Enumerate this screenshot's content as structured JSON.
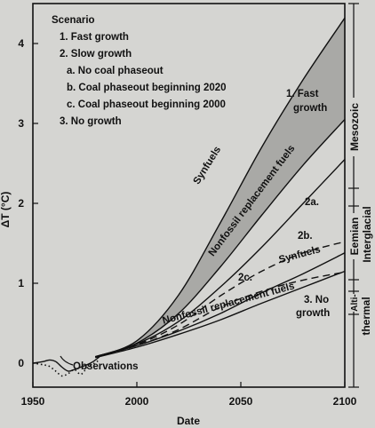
{
  "chart_data": {
    "type": "line",
    "title": "",
    "xlabel": "Date",
    "ylabel": "ΔT (°C)",
    "xlim": [
      1950,
      2100
    ],
    "ylim": [
      -0.3,
      4.5
    ],
    "grid": false,
    "x_ticks": [
      1950,
      2000,
      2050,
      2100
    ],
    "y_ticks": [
      0,
      1,
      2,
      3,
      4
    ],
    "legend": {
      "title": "Scenario",
      "items": [
        "1. Fast growth",
        "2. Slow growth",
        "a. No coal phaseout",
        "b. Coal phaseout beginning 2020",
        "c. Coal phaseout beginning 2000",
        "3. No growth"
      ]
    },
    "series": [
      {
        "id": "s1_synfuels",
        "style": "solid",
        "x": [
          1980,
          2000,
          2020,
          2040,
          2060,
          2080,
          2100
        ],
        "y": [
          0.08,
          0.28,
          0.85,
          1.75,
          2.7,
          3.55,
          4.32
        ]
      },
      {
        "id": "s1_nonfossil",
        "style": "solid",
        "x": [
          1980,
          2000,
          2020,
          2040,
          2060,
          2080,
          2100
        ],
        "y": [
          0.08,
          0.25,
          0.62,
          1.2,
          1.85,
          2.48,
          3.05
        ]
      },
      {
        "id": "s2a",
        "style": "solid",
        "x": [
          1980,
          2000,
          2020,
          2040,
          2060,
          2080,
          2100
        ],
        "y": [
          0.08,
          0.24,
          0.52,
          0.95,
          1.45,
          2.0,
          2.55
        ]
      },
      {
        "id": "s2b",
        "style": "dashed",
        "x": [
          1980,
          2000,
          2020,
          2040,
          2060,
          2080,
          2100
        ],
        "y": [
          0.08,
          0.23,
          0.48,
          0.84,
          1.15,
          1.38,
          1.52
        ]
      },
      {
        "id": "s2c",
        "style": "dashed",
        "x": [
          1980,
          2000,
          2020,
          2040,
          2060,
          2080,
          2100
        ],
        "y": [
          0.08,
          0.22,
          0.42,
          0.7,
          0.9,
          1.04,
          1.14
        ]
      },
      {
        "id": "s3_synfuels",
        "style": "solid",
        "x": [
          1980,
          2000,
          2020,
          2040,
          2060,
          2080,
          2100
        ],
        "y": [
          0.08,
          0.22,
          0.4,
          0.62,
          0.88,
          1.12,
          1.38
        ]
      },
      {
        "id": "s3_nonfossil",
        "style": "solid",
        "x": [
          1980,
          2000,
          2020,
          2040,
          2060,
          2080,
          2100
        ],
        "y": [
          0.07,
          0.2,
          0.36,
          0.54,
          0.75,
          0.95,
          1.15
        ]
      }
    ],
    "observations": {
      "solid": {
        "x": [
          1950,
          1955,
          1958,
          1961,
          1964,
          1967,
          1970,
          1973,
          1976,
          1979,
          1982
        ],
        "y": [
          0.0,
          0.02,
          0.04,
          0.02,
          -0.05,
          -0.1,
          -0.08,
          -0.05,
          -0.02,
          0.02,
          0.08
        ]
      },
      "dotted": {
        "x": [
          1950,
          1955,
          1958,
          1961,
          1964,
          1967,
          1970,
          1973,
          1976,
          1979,
          1982
        ],
        "y": [
          0.0,
          -0.02,
          -0.04,
          -0.1,
          -0.16,
          -0.13,
          -0.08,
          -0.14,
          -0.06,
          -0.01,
          0.04
        ]
      }
    },
    "annotations": {
      "observations": "Observations",
      "fast_growth_1": "1. Fast",
      "fast_growth_2": "growth",
      "synfuels_fast": "Synfuels",
      "nonfossil_fast": "Nonfossil replacement fuels",
      "label_2a": "2a.",
      "label_2b": "2b.",
      "label_2c": "2c.",
      "synfuels_slow": "Synfuels",
      "nonfossil_slow": "Nonfossil replacement fuels",
      "no_growth_1": "3. No",
      "no_growth_2": "growth"
    },
    "periods": {
      "mesozoic": "Mesozoic",
      "eemian": "Eemian",
      "interglacial": "Interglacial",
      "alti": "Alti-",
      "thermal": "thermal"
    },
    "colors": {
      "background": "#d5d5d2",
      "ink": "#111111",
      "band_fill": "#a9a9a6"
    }
  }
}
